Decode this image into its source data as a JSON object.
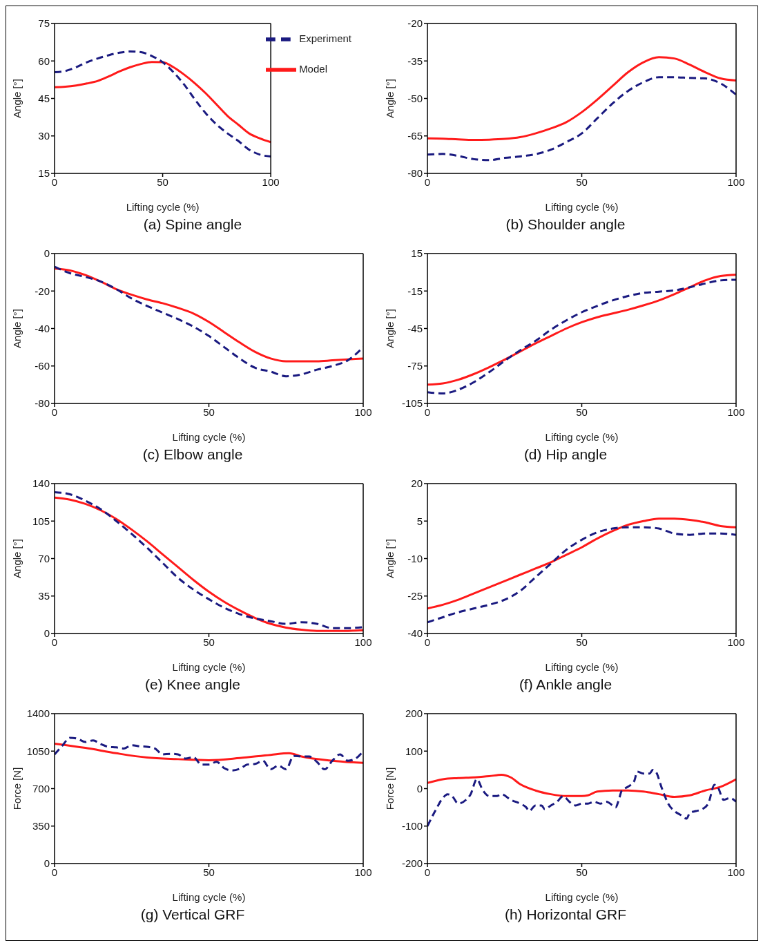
{
  "chart_data": [
    {
      "type": "line",
      "title": "(a) Spine angle",
      "xlabel": "Lifting cycle (%)",
      "ylabel": "Angle [°]",
      "xlim": [
        0,
        100
      ],
      "xticks": [
        0,
        50,
        100
      ],
      "ylim": [
        15,
        75
      ],
      "yticks": [
        15,
        30,
        45,
        60,
        75
      ],
      "legend": "top right",
      "x": [
        0,
        5,
        10,
        15,
        20,
        25,
        30,
        35,
        40,
        45,
        50,
        55,
        60,
        65,
        70,
        75,
        80,
        85,
        90,
        95,
        100
      ],
      "series": [
        {
          "name": "Model",
          "color": "#ff1a1a",
          "line_style": "solid",
          "values": [
            49.5,
            49.7,
            50.2,
            51,
            52,
            53.8,
            55.8,
            57.5,
            58.8,
            59.6,
            59.5,
            57.5,
            54.5,
            51,
            47,
            42.5,
            38,
            34.5,
            31,
            29,
            27.5
          ]
        },
        {
          "name": "Experiment",
          "color": "#1a1a80",
          "line_style": "dashed",
          "values": [
            55.5,
            56,
            57.5,
            59.5,
            61,
            62.3,
            63.3,
            63.8,
            63.5,
            62,
            59.5,
            55.5,
            50.5,
            44.5,
            39,
            34.5,
            31,
            28,
            24.5,
            22.5,
            21.8
          ]
        }
      ]
    },
    {
      "type": "line",
      "title": "(b) Shoulder angle",
      "xlabel": "Lifting cycle (%)",
      "ylabel": "Angle [°]",
      "xlim": [
        0,
        100
      ],
      "xticks": [
        0,
        50,
        100
      ],
      "ylim": [
        -80,
        -20
      ],
      "yticks": [
        -80,
        -65,
        -50,
        -35,
        -20
      ],
      "x": [
        0,
        5,
        10,
        15,
        20,
        25,
        30,
        35,
        40,
        45,
        50,
        55,
        60,
        65,
        70,
        75,
        80,
        85,
        90,
        95,
        100
      ],
      "series": [
        {
          "color": "#ff1a1a",
          "line_style": "solid",
          "values": [
            -66,
            -66.1,
            -66.4,
            -66.6,
            -66.5,
            -66.2,
            -65.5,
            -64,
            -62,
            -59.5,
            -55.5,
            -50.5,
            -45,
            -39.5,
            -35.5,
            -33.5,
            -34,
            -36.5,
            -39.5,
            -42,
            -42.8
          ]
        },
        {
          "color": "#1a1a80",
          "line_style": "dashed",
          "values": [
            -72.5,
            -72.2,
            -73,
            -74.3,
            -74.7,
            -73.8,
            -73.2,
            -72.3,
            -70.5,
            -67.5,
            -64,
            -58,
            -52,
            -47,
            -43.5,
            -41.5,
            -41.5,
            -41.8,
            -42,
            -44,
            -48.5
          ]
        }
      ]
    },
    {
      "type": "line",
      "title": "(c) Elbow angle",
      "xlabel": "Lifting cycle (%)",
      "ylabel": "Angle [°]",
      "xlim": [
        0,
        100
      ],
      "xticks": [
        0,
        50,
        100
      ],
      "ylim": [
        -80,
        0
      ],
      "yticks": [
        -80,
        -60,
        -40,
        -20,
        0
      ],
      "x": [
        0,
        5,
        10,
        15,
        20,
        25,
        30,
        35,
        40,
        45,
        50,
        55,
        60,
        65,
        70,
        75,
        80,
        85,
        90,
        95,
        100
      ],
      "series": [
        {
          "color": "#ff1a1a",
          "line_style": "solid",
          "values": [
            -8,
            -9,
            -11.5,
            -15,
            -19,
            -22,
            -24.5,
            -26.5,
            -29,
            -32,
            -36.5,
            -42,
            -47.5,
            -52.5,
            -56,
            -57.5,
            -57.5,
            -57.5,
            -57,
            -56.5,
            -56
          ]
        },
        {
          "color": "#1a1a80",
          "line_style": "dashed",
          "values": [
            -7,
            -10.5,
            -12.5,
            -15,
            -19,
            -24,
            -28,
            -31.5,
            -35,
            -39,
            -44,
            -50,
            -56,
            -61,
            -63,
            -65.5,
            -64.5,
            -62,
            -60,
            -57,
            -50
          ]
        }
      ]
    },
    {
      "type": "line",
      "title": "(d) Hip angle",
      "xlabel": "Lifting cycle (%)",
      "ylabel": "Angle [°]",
      "xlim": [
        0,
        100
      ],
      "xticks": [
        0,
        50,
        100
      ],
      "ylim": [
        -105,
        15
      ],
      "yticks": [
        -105,
        -75,
        -45,
        -15,
        15
      ],
      "x": [
        0,
        5,
        10,
        15,
        20,
        25,
        30,
        35,
        40,
        45,
        50,
        55,
        60,
        65,
        70,
        75,
        80,
        85,
        90,
        95,
        100
      ],
      "series": [
        {
          "color": "#ff1a1a",
          "line_style": "solid",
          "values": [
            -90,
            -89,
            -86,
            -81.5,
            -76,
            -70,
            -63.5,
            -57,
            -51,
            -45,
            -40,
            -36,
            -33,
            -30,
            -26.5,
            -22.5,
            -17.5,
            -12,
            -6.5,
            -3,
            -2
          ]
        },
        {
          "color": "#1a1a80",
          "line_style": "dashed",
          "values": [
            -96,
            -97,
            -94,
            -88,
            -80,
            -71,
            -62.5,
            -55,
            -46,
            -38.5,
            -32,
            -27,
            -22.5,
            -19,
            -16.5,
            -15.5,
            -14.5,
            -12,
            -9,
            -6.5,
            -6
          ]
        }
      ]
    },
    {
      "type": "line",
      "title": "(e) Knee angle",
      "xlabel": "Lifting cycle (%)",
      "ylabel": "Angle [°]",
      "xlim": [
        0,
        100
      ],
      "xticks": [
        0,
        50,
        100
      ],
      "ylim": [
        0,
        140
      ],
      "yticks": [
        0,
        35,
        70,
        105,
        140
      ],
      "x": [
        0,
        5,
        10,
        15,
        20,
        25,
        30,
        35,
        40,
        45,
        50,
        55,
        60,
        65,
        70,
        75,
        80,
        85,
        90,
        95,
        100
      ],
      "series": [
        {
          "color": "#ff1a1a",
          "line_style": "solid",
          "values": [
            127,
            125,
            121,
            115,
            107,
            97,
            86,
            74,
            62,
            50,
            39,
            29.5,
            21.5,
            14.5,
            9,
            5.5,
            3.5,
            2.5,
            2.5,
            2.5,
            3
          ]
        },
        {
          "color": "#1a1a80",
          "line_style": "dashed",
          "values": [
            132,
            130,
            124,
            116,
            105,
            93,
            80,
            66,
            52,
            41,
            32,
            24,
            18,
            14,
            11.5,
            9,
            10.5,
            9,
            5,
            5,
            6
          ]
        }
      ]
    },
    {
      "type": "line",
      "title": "(f) Ankle angle",
      "xlabel": "Lifting cycle (%)",
      "ylabel": "Angle [°]",
      "xlim": [
        0,
        100
      ],
      "xticks": [
        0,
        50,
        100
      ],
      "ylim": [
        -40,
        20
      ],
      "yticks": [
        -40,
        -25,
        -10,
        5,
        20
      ],
      "x": [
        0,
        5,
        10,
        15,
        20,
        25,
        30,
        35,
        40,
        45,
        50,
        55,
        60,
        65,
        70,
        75,
        80,
        85,
        90,
        95,
        100
      ],
      "series": [
        {
          "color": "#ff1a1a",
          "line_style": "solid",
          "values": [
            -30,
            -28.5,
            -26.5,
            -24,
            -21.5,
            -19,
            -16.5,
            -14,
            -11.5,
            -8.5,
            -5.5,
            -2,
            1,
            3.5,
            5,
            6,
            6,
            5.5,
            4.5,
            3,
            2.5
          ]
        },
        {
          "color": "#1a1a80",
          "line_style": "dashed",
          "values": [
            -35.5,
            -33.5,
            -31.5,
            -30,
            -28.5,
            -26.5,
            -23,
            -17.5,
            -12,
            -6.5,
            -2.5,
            0.5,
            2,
            2.5,
            2.5,
            2,
            0,
            -0.5,
            0,
            0,
            -0.5
          ]
        }
      ]
    },
    {
      "type": "line",
      "title": "(g) Vertical GRF",
      "xlabel": "Lifting cycle (%)",
      "ylabel": "Force [N]",
      "xlim": [
        0,
        100
      ],
      "xticks": [
        0,
        50,
        100
      ],
      "ylim": [
        0,
        1400
      ],
      "yticks": [
        0,
        350,
        700,
        1050,
        1400
      ],
      "series": [
        {
          "color": "#ff1a1a",
          "line_style": "solid",
          "x": [
            0,
            10,
            20,
            30,
            40,
            50,
            60,
            70,
            76,
            80,
            90,
            100
          ],
          "values": [
            1120,
            1080,
            1030,
            990,
            975,
            965,
            985,
            1015,
            1030,
            1000,
            960,
            940
          ]
        },
        {
          "color": "#1a1a80",
          "line_style": "dashed",
          "x": [
            0,
            2.5,
            5,
            7.5,
            10,
            12.5,
            15,
            17.5,
            20,
            22.5,
            25,
            27.5,
            30,
            32.5,
            35,
            37.5,
            40,
            42.5,
            45,
            47.5,
            50,
            52.5,
            55,
            57.5,
            60,
            62.5,
            65,
            67.5,
            70,
            72.5,
            75,
            77.5,
            80,
            82.5,
            85,
            87.5,
            90,
            92.5,
            95,
            97.5,
            100
          ],
          "values": [
            1020,
            1100,
            1175,
            1165,
            1135,
            1150,
            1115,
            1090,
            1085,
            1075,
            1105,
            1095,
            1090,
            1075,
            1020,
            1025,
            1020,
            980,
            995,
            925,
            925,
            950,
            890,
            870,
            885,
            925,
            930,
            960,
            880,
            915,
            880,
            1005,
            1000,
            1000,
            950,
            880,
            960,
            1020,
            960,
            980,
            1050
          ]
        }
      ]
    },
    {
      "type": "line",
      "title": "(h) Horizontal GRF",
      "xlabel": "Lifting cycle (%)",
      "ylabel": "Force [N]",
      "xlim": [
        0,
        100
      ],
      "xticks": [
        0,
        50,
        100
      ],
      "ylim": [
        -200,
        200
      ],
      "yticks": [
        -200,
        -100,
        0,
        100,
        200
      ],
      "series": [
        {
          "color": "#ff1a1a",
          "line_style": "solid",
          "x": [
            0,
            5,
            10,
            15,
            20,
            24,
            27,
            30,
            35,
            40,
            45,
            50,
            52,
            55,
            60,
            65,
            70,
            75,
            80,
            85,
            90,
            95,
            100
          ],
          "values": [
            15,
            25,
            28,
            30,
            33,
            37,
            30,
            12,
            -5,
            -15,
            -20,
            -20,
            -18,
            -8,
            -5,
            -5,
            -8,
            -15,
            -22,
            -18,
            -5,
            5,
            25
          ]
        },
        {
          "color": "#1a1a80",
          "line_style": "dashed",
          "x": [
            0,
            2.5,
            5,
            6.5,
            8,
            10,
            12.5,
            14,
            16,
            18,
            20,
            22.5,
            24,
            27,
            30,
            32,
            33,
            35,
            37,
            38,
            40,
            42,
            44,
            46,
            48,
            50,
            52,
            54,
            56,
            58,
            60,
            61,
            62,
            63,
            65,
            67,
            68,
            70,
            72,
            73,
            74,
            76,
            78,
            80,
            82,
            84,
            85,
            87,
            89,
            91,
            93,
            94,
            96,
            98,
            100
          ],
          "values": [
            -100,
            -60,
            -25,
            -15,
            -20,
            -40,
            -30,
            -15,
            25,
            -5,
            -20,
            -20,
            -15,
            -30,
            -40,
            -50,
            -60,
            -45,
            -45,
            -55,
            -45,
            -35,
            -20,
            -35,
            -45,
            -40,
            -40,
            -35,
            -40,
            -35,
            -45,
            -50,
            -30,
            -5,
            5,
            20,
            45,
            40,
            40,
            50,
            45,
            0,
            -40,
            -60,
            -70,
            -80,
            -65,
            -60,
            -55,
            -40,
            10,
            5,
            -30,
            -25,
            -35
          ]
        }
      ]
    }
  ]
}
